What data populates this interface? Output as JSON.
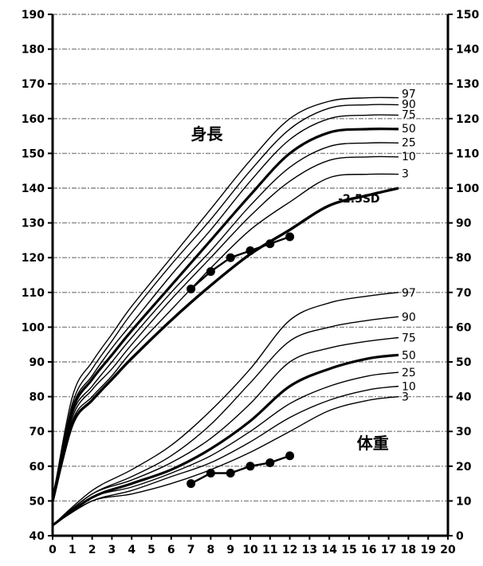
{
  "chart_data": {
    "type": "line",
    "x_ticks": [
      "0",
      "1",
      "2",
      "3",
      "4",
      "5",
      "6",
      "7",
      "8",
      "9",
      "10",
      "11",
      "12",
      "13",
      "14",
      "15",
      "16",
      "17",
      "18",
      "19",
      "20"
    ],
    "xlim": [
      0,
      20
    ],
    "grid": true,
    "height_chart": {
      "label": "身長",
      "y_ticks": [
        "40",
        "50",
        "60",
        "70",
        "80",
        "90",
        "100",
        "110",
        "120",
        "130",
        "140",
        "150",
        "160",
        "170",
        "180",
        "190"
      ],
      "ylim": [
        40,
        190
      ],
      "x": [
        0,
        1,
        2,
        3,
        4,
        6,
        8,
        10,
        12,
        14,
        16,
        17.5
      ],
      "series": [
        {
          "name": "97",
          "values": [
            50,
            80,
            90,
            98,
            106,
            120,
            134,
            148,
            160,
            165,
            166,
            166
          ]
        },
        {
          "name": "90",
          "values": [
            50,
            78,
            88,
            96,
            104,
            118,
            131,
            145,
            157,
            163,
            164,
            164
          ]
        },
        {
          "name": "75",
          "values": [
            50,
            77,
            86,
            94,
            101,
            115,
            128,
            142,
            154,
            160,
            161,
            161
          ]
        },
        {
          "name": "50",
          "values": [
            50,
            76,
            85,
            92,
            99,
            112,
            125,
            138,
            150,
            156,
            157,
            157
          ]
        },
        {
          "name": "25",
          "values": [
            50,
            75,
            83,
            90,
            97,
            110,
            122,
            135,
            146,
            152,
            153,
            153
          ]
        },
        {
          "name": "10",
          "values": [
            50,
            74,
            82,
            88,
            95,
            108,
            120,
            132,
            142,
            148,
            149,
            149
          ]
        },
        {
          "name": "3",
          "values": [
            50,
            73,
            80,
            86,
            93,
            105,
            117,
            128,
            136,
            143,
            144,
            144
          ]
        }
      ],
      "sd_curve": {
        "name": "-2.5SD",
        "values": [
          50,
          72,
          79,
          85,
          91,
          102,
          112,
          121,
          128,
          135,
          138,
          140
        ]
      },
      "observations": {
        "x": [
          7,
          8,
          9,
          10,
          11,
          12
        ],
        "values": [
          111,
          116,
          120,
          122,
          124,
          126
        ]
      }
    },
    "weight_chart": {
      "label": "体重",
      "y_ticks": [
        "0",
        "10",
        "20",
        "30",
        "40",
        "50",
        "60",
        "70",
        "80",
        "90",
        "100",
        "110",
        "120",
        "130",
        "140",
        "150"
      ],
      "ylim": [
        0,
        150
      ],
      "x": [
        0,
        2,
        4,
        6,
        8,
        10,
        12,
        14,
        16,
        17.5
      ],
      "series": [
        {
          "name": "97",
          "values": [
            3,
            13,
            19,
            26,
            36,
            48,
            62,
            67,
            69,
            70
          ]
        },
        {
          "name": "90",
          "values": [
            3,
            12,
            17,
            23,
            32,
            44,
            56,
            60,
            62,
            63
          ]
        },
        {
          "name": "75",
          "values": [
            3,
            12,
            16,
            21,
            28,
            38,
            50,
            54,
            56,
            57
          ]
        },
        {
          "name": "50",
          "values": [
            3,
            11,
            15,
            19,
            25,
            33,
            43,
            48,
            51,
            52
          ]
        },
        {
          "name": "25",
          "values": [
            3,
            11,
            14,
            18,
            23,
            30,
            38,
            43,
            46,
            47
          ]
        },
        {
          "name": "10",
          "values": [
            3,
            10,
            13,
            17,
            21,
            27,
            34,
            39,
            42,
            43
          ]
        },
        {
          "name": "3",
          "values": [
            3,
            10,
            12,
            15,
            19,
            24,
            30,
            36,
            39,
            40
          ]
        }
      ],
      "observations": {
        "x": [
          7,
          8,
          9,
          10,
          11,
          12
        ],
        "values": [
          15,
          18,
          18,
          20,
          21,
          23
        ]
      }
    }
  }
}
